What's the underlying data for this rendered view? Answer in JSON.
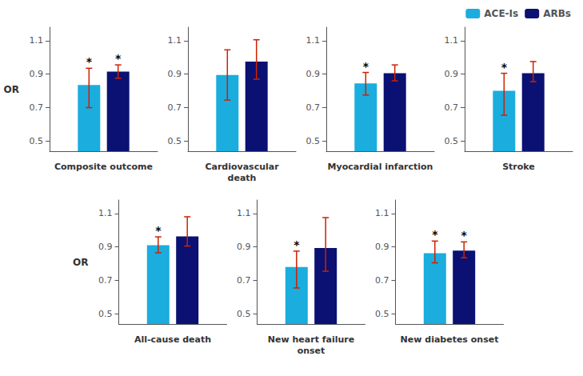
{
  "chart_data": [
    {
      "type": "bar",
      "xlabel": "Composite outcome",
      "ylabel": "OR",
      "categories": [
        null
      ],
      "series": [
        {
          "name": "ACE-Is",
          "color": "#1AADDE",
          "values": [
            0.835
          ],
          "errors": {
            "low": [
              0.7
            ],
            "high": [
              0.935
            ],
            "color": "#CC2200"
          },
          "annotations": [
            "*"
          ]
        },
        {
          "name": "ARBs",
          "color": "#0A1172",
          "values": [
            0.915
          ],
          "errors": {
            "low": [
              0.875
            ],
            "high": [
              0.955
            ],
            "color": "#CC2200"
          },
          "annotations": [
            "*"
          ]
        }
      ],
      "ylim": [
        0.44,
        1.18
      ],
      "yticks": [
        0.5,
        0.7,
        0.9,
        1.1
      ],
      "grid": false,
      "tick_labels": "y",
      "legend": "upper right"
    },
    {
      "type": "bar",
      "xlabel": "Cardiovascular\ndeath",
      "categories": [
        null
      ],
      "series": [
        {
          "name": "ACE-Is",
          "color": "#1AADDE",
          "values": [
            0.895
          ],
          "errors": {
            "low": [
              0.745
            ],
            "high": [
              1.045
            ],
            "color": "#CC2200"
          },
          "annotations": [
            null
          ]
        },
        {
          "name": "ARBs",
          "color": "#0A1172",
          "values": [
            0.975
          ],
          "errors": {
            "low": [
              0.87
            ],
            "high": [
              1.105
            ],
            "color": "#CC2200"
          },
          "annotations": [
            null
          ]
        }
      ],
      "ylim": [
        0.44,
        1.18
      ],
      "yticks": [
        0.5,
        0.7,
        0.9,
        1.1
      ],
      "grid": false,
      "tick_labels": "y"
    },
    {
      "type": "bar",
      "xlabel": "Myocardial infarction",
      "categories": [
        null
      ],
      "series": [
        {
          "name": "ACE-Is",
          "color": "#1AADDE",
          "values": [
            0.845
          ],
          "errors": {
            "low": [
              0.775
            ],
            "high": [
              0.91
            ],
            "color": "#CC2200"
          },
          "annotations": [
            "*"
          ]
        },
        {
          "name": "ARBs",
          "color": "#0A1172",
          "values": [
            0.905
          ],
          "errors": {
            "low": [
              0.86
            ],
            "high": [
              0.955
            ],
            "color": "#CC2200"
          },
          "annotations": [
            null
          ]
        }
      ],
      "ylim": [
        0.44,
        1.18
      ],
      "yticks": [
        0.5,
        0.7,
        0.9,
        1.1
      ],
      "grid": false,
      "tick_labels": "y"
    },
    {
      "type": "bar",
      "xlabel": "Stroke",
      "categories": [
        null
      ],
      "series": [
        {
          "name": "ACE-Is",
          "color": "#1AADDE",
          "values": [
            0.8
          ],
          "errors": {
            "low": [
              0.655
            ],
            "high": [
              0.905
            ],
            "color": "#CC2200"
          },
          "annotations": [
            "*"
          ]
        },
        {
          "name": "ARBs",
          "color": "#0A1172",
          "values": [
            0.905
          ],
          "errors": {
            "low": [
              0.855
            ],
            "high": [
              0.975
            ],
            "color": "#CC2200"
          },
          "annotations": [
            null
          ]
        }
      ],
      "ylim": [
        0.44,
        1.18
      ],
      "yticks": [
        0.5,
        0.7,
        0.9,
        1.1
      ],
      "grid": false,
      "tick_labels": "y"
    },
    {
      "type": "bar",
      "xlabel": "All-cause death",
      "ylabel": "OR",
      "categories": [
        null
      ],
      "series": [
        {
          "name": "ACE-Is",
          "color": "#1AADDE",
          "values": [
            0.91
          ],
          "errors": {
            "low": [
              0.865
            ],
            "high": [
              0.96
            ],
            "color": "#CC2200"
          },
          "annotations": [
            "*"
          ]
        },
        {
          "name": "ARBs",
          "color": "#0A1172",
          "values": [
            0.963
          ],
          "errors": {
            "low": [
              0.905
            ],
            "high": [
              1.08
            ],
            "color": "#CC2200"
          },
          "annotations": [
            null
          ]
        }
      ],
      "ylim": [
        0.44,
        1.18
      ],
      "yticks": [
        0.5,
        0.7,
        0.9,
        1.1
      ],
      "grid": false,
      "tick_labels": "y"
    },
    {
      "type": "bar",
      "xlabel": "New heart failure\nonset",
      "categories": [
        null
      ],
      "series": [
        {
          "name": "ACE-Is",
          "color": "#1AADDE",
          "values": [
            0.78
          ],
          "errors": {
            "low": [
              0.655
            ],
            "high": [
              0.875
            ],
            "color": "#CC2200"
          },
          "annotations": [
            "*"
          ]
        },
        {
          "name": "ARBs",
          "color": "#0A1172",
          "values": [
            0.893
          ],
          "errors": {
            "low": [
              0.755
            ],
            "high": [
              1.075
            ],
            "color": "#CC2200"
          },
          "annotations": [
            null
          ]
        }
      ],
      "ylim": [
        0.44,
        1.18
      ],
      "yticks": [
        0.5,
        0.7,
        0.9,
        1.1
      ],
      "grid": false,
      "tick_labels": "y"
    },
    {
      "type": "bar",
      "xlabel": "New diabetes onset",
      "categories": [
        null
      ],
      "series": [
        {
          "name": "ACE-Is",
          "color": "#1AADDE",
          "values": [
            0.862
          ],
          "errors": {
            "low": [
              0.805
            ],
            "high": [
              0.935
            ],
            "color": "#CC2200"
          },
          "annotations": [
            "*"
          ]
        },
        {
          "name": "ARBs",
          "color": "#0A1172",
          "values": [
            0.878
          ],
          "errors": {
            "low": [
              0.835
            ],
            "high": [
              0.93
            ],
            "color": "#CC2200"
          },
          "annotations": [
            "*"
          ]
        }
      ],
      "ylim": [
        0.44,
        1.18
      ],
      "yticks": [
        0.5,
        0.7,
        0.9,
        1.1
      ],
      "grid": false,
      "tick_labels": "y"
    }
  ]
}
